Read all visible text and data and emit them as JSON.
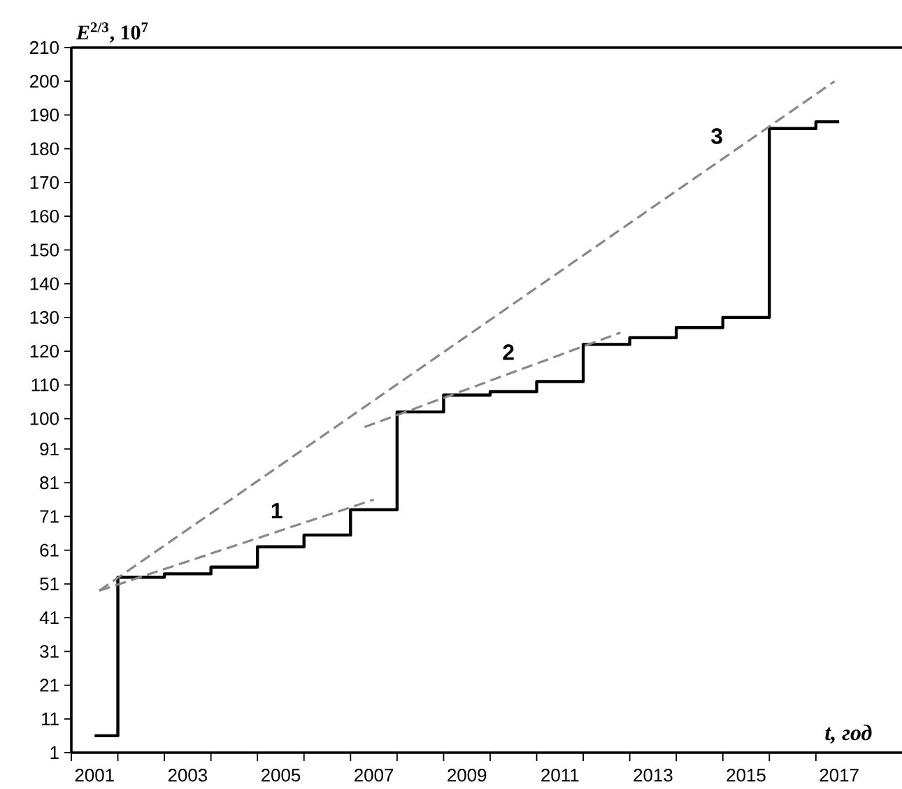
{
  "chart_data": {
    "type": "step",
    "xlabel": "t, год",
    "ylabel": "*E*$^{2/3}$, 10$^{7}$",
    "xlim": [
      2000.5,
      2018.35
    ],
    "ylim": [
      1,
      210
    ],
    "xticks": [
      {
        "value": 2000.5,
        "label": null
      },
      {
        "value": 2001,
        "label": "2001"
      },
      {
        "value": 2001.5,
        "label": null
      },
      {
        "value": 2002.5,
        "label": null
      },
      {
        "value": 2003,
        "label": "2003"
      },
      {
        "value": 2003.5,
        "label": null
      },
      {
        "value": 2004.5,
        "label": null
      },
      {
        "value": 2005,
        "label": "2005"
      },
      {
        "value": 2005.5,
        "label": null
      },
      {
        "value": 2006.5,
        "label": null
      },
      {
        "value": 2007,
        "label": "2007"
      },
      {
        "value": 2007.5,
        "label": null
      },
      {
        "value": 2008.5,
        "label": null
      },
      {
        "value": 2009,
        "label": "2009"
      },
      {
        "value": 2009.5,
        "label": null
      },
      {
        "value": 2010.5,
        "label": null
      },
      {
        "value": 2011,
        "label": "2011"
      },
      {
        "value": 2011.5,
        "label": null
      },
      {
        "value": 2012.5,
        "label": null
      },
      {
        "value": 2013,
        "label": "2013"
      },
      {
        "value": 2013.5,
        "label": null
      },
      {
        "value": 2014.5,
        "label": null
      },
      {
        "value": 2015,
        "label": "2015"
      },
      {
        "value": 2015.5,
        "label": null
      },
      {
        "value": 2016.5,
        "label": null
      },
      {
        "value": 2017,
        "label": "2017"
      }
    ],
    "yticks": [
      1,
      11,
      21,
      31,
      41,
      51,
      61,
      71,
      81,
      91,
      100,
      110,
      120,
      130,
      140,
      150,
      160,
      170,
      180,
      190,
      200,
      210
    ],
    "grid": false,
    "marker": "none",
    "series": [
      {
        "color": "#000000",
        "x": [
          2001,
          2002,
          2003,
          2004,
          2005,
          2006,
          2007,
          2008,
          2009,
          2010,
          2011,
          2012,
          2013,
          2014,
          2015,
          2016,
          2017
        ],
        "values": [
          6,
          53,
          54,
          56,
          62,
          65.5,
          73,
          102,
          107,
          108,
          111,
          122,
          124,
          127,
          130,
          186,
          188
        ]
      },
      {
        "type": "line",
        "name": "1",
        "color": "#888888",
        "line_style": "dashed",
        "x": [
          2001.1,
          2007.0
        ],
        "values": [
          49,
          76
        ]
      },
      {
        "type": "line",
        "name": "2",
        "color": "#888888",
        "line_style": "dashed",
        "x": [
          2006.8,
          2012.3
        ],
        "values": [
          97.5,
          125.5
        ]
      },
      {
        "type": "line",
        "name": "3",
        "color": "#888888",
        "line_style": "dashed",
        "x": [
          2001.1,
          2016.9
        ],
        "values": [
          49,
          200
        ]
      }
    ]
  }
}
